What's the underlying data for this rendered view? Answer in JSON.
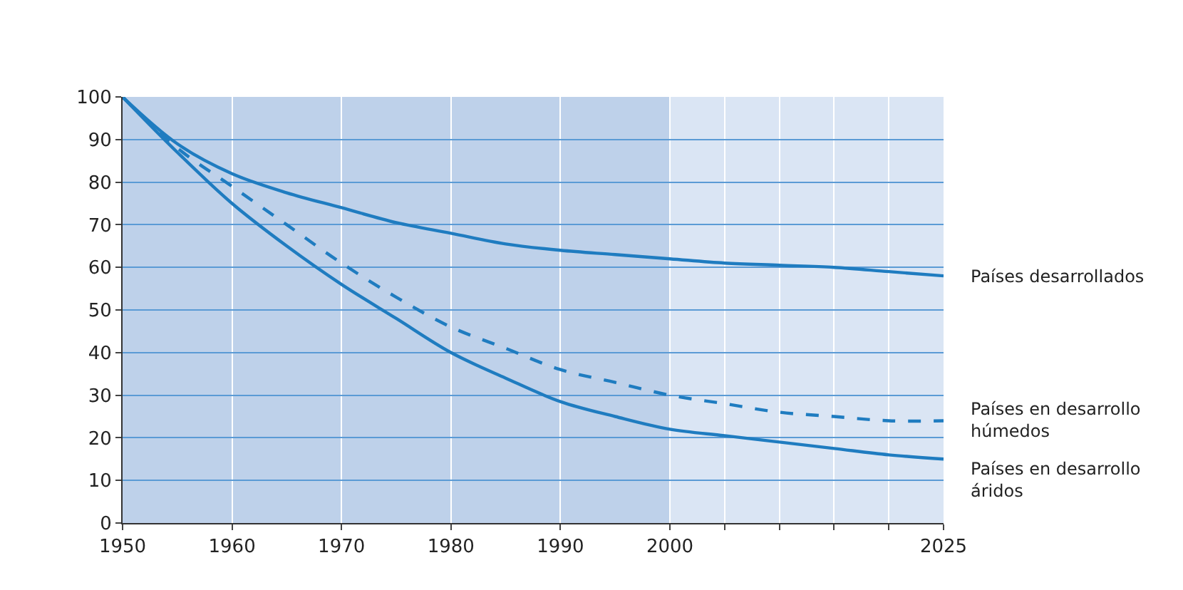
{
  "chart_data": {
    "type": "line",
    "x": [
      1950,
      1955,
      1960,
      1965,
      1970,
      1975,
      1980,
      1985,
      1990,
      1995,
      2000,
      2005,
      2010,
      2015,
      2020,
      2025
    ],
    "series": [
      {
        "name": "Países desarrollados",
        "color": "#1f7cc0",
        "line_style": "solid",
        "values": [
          100,
          89,
          82,
          77.5,
          74,
          70.5,
          68,
          65.5,
          64,
          63,
          62,
          61,
          60.5,
          60,
          59,
          58
        ]
      },
      {
        "name": "Países en desarrollo\nhúmedos",
        "color": "#1f7cc0",
        "line_style": "dashed",
        "values": [
          100,
          88,
          79,
          70,
          61,
          53,
          46,
          41,
          36,
          33,
          30,
          28,
          26,
          25,
          24,
          24
        ]
      },
      {
        "name": "Países en desarrollo\náridos",
        "color": "#1f7cc0",
        "line_style": "solid",
        "values": [
          100,
          87,
          75,
          65,
          56,
          48,
          40,
          34,
          28.5,
          25,
          22,
          20.5,
          19,
          17.5,
          16,
          15
        ]
      }
    ],
    "xlim": [
      1950,
      2025
    ],
    "xticks": [
      1950,
      1960,
      1970,
      1980,
      1990,
      2000,
      {
        "value": 2005,
        "label": null
      },
      {
        "value": 2010,
        "label": null
      },
      {
        "value": 2015,
        "label": null
      },
      {
        "value": 2020,
        "label": null
      },
      2025
    ],
    "ylim": [
      0,
      100
    ],
    "yticks": [
      0,
      10,
      20,
      30,
      40,
      50,
      60,
      70,
      80,
      90,
      100
    ],
    "bands": [
      {
        "axis": "x",
        "from": 1950,
        "to": 2000,
        "color": "#bed1ea"
      },
      {
        "axis": "x",
        "from": 2000,
        "to": 2025,
        "color": "#dae5f4"
      }
    ],
    "grid": true,
    "legend": false,
    "marker": "none"
  }
}
